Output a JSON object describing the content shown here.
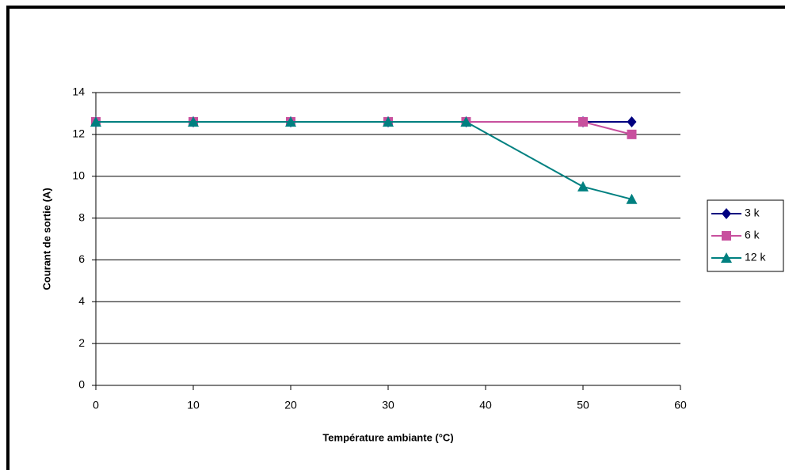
{
  "chart_data": {
    "type": "line",
    "xlabel": "Température ambiante (°C)",
    "ylabel": "Courant de sortie (A)",
    "x": [
      0,
      10,
      20,
      30,
      38,
      50,
      55
    ],
    "series": [
      {
        "name": "3 k",
        "color": "#000080",
        "marker": "diamond",
        "values": [
          12.6,
          12.6,
          12.6,
          12.6,
          12.6,
          12.6,
          12.6
        ]
      },
      {
        "name": "6 k",
        "color": "#c8509e",
        "marker": "square",
        "values": [
          12.6,
          12.6,
          12.6,
          12.6,
          12.6,
          12.6,
          12.0
        ]
      },
      {
        "name": "12 k",
        "color": "#008080",
        "marker": "triangle",
        "values": [
          12.6,
          12.6,
          12.6,
          12.6,
          12.6,
          9.5,
          8.9
        ]
      }
    ],
    "xlim": [
      0,
      60
    ],
    "xticks": [
      0,
      10,
      20,
      30,
      40,
      50,
      60
    ],
    "ylim": [
      0,
      14
    ],
    "yticks": [
      0,
      2,
      4,
      6,
      8,
      10,
      12,
      14
    ],
    "grid": true,
    "legend": "right"
  }
}
